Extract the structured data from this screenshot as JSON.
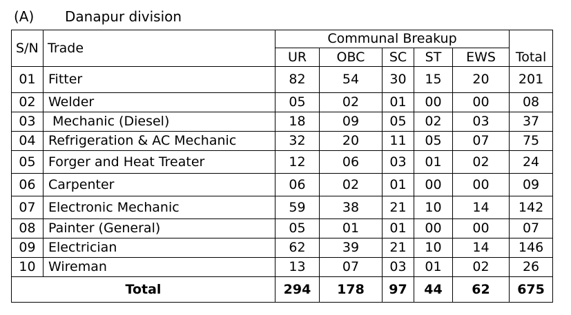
{
  "section": {
    "label": "(A)",
    "title": "Danapur division"
  },
  "table": {
    "header": {
      "sn": "S/N",
      "trade": "Trade",
      "group": "Communal Breakup",
      "cols": [
        "UR",
        "OBC",
        "SC",
        "ST",
        "EWS"
      ],
      "total": "Total"
    },
    "rows": [
      {
        "sn": "01",
        "trade": "Fitter",
        "ur": "82",
        "obc": "54",
        "sc": "30",
        "st": "15",
        "ews": "20",
        "total": "201"
      },
      {
        "sn": "02",
        "trade": "Welder",
        "ur": "05",
        "obc": "02",
        "sc": "01",
        "st": "00",
        "ews": "00",
        "total": "08"
      },
      {
        "sn": "03",
        "trade": " Mechanic (Diesel)",
        "ur": "18",
        "obc": "09",
        "sc": "05",
        "st": "02",
        "ews": "03",
        "total": "37"
      },
      {
        "sn": "04",
        "trade": "Refrigeration & AC Mechanic",
        "ur": "32",
        "obc": "20",
        "sc": "11",
        "st": "05",
        "ews": "07",
        "total": "75"
      },
      {
        "sn": "05",
        "trade": "Forger and Heat Treater",
        "ur": "12",
        "obc": "06",
        "sc": "03",
        "st": "01",
        "ews": "02",
        "total": "24"
      },
      {
        "sn": "06",
        "trade": "Carpenter",
        "ur": "06",
        "obc": "02",
        "sc": "01",
        "st": "00",
        "ews": "00",
        "total": "09"
      },
      {
        "sn": "07",
        "trade": "Electronic Mechanic",
        "ur": "59",
        "obc": "38",
        "sc": "21",
        "st": "10",
        "ews": "14",
        "total": "142"
      },
      {
        "sn": "08",
        "trade": "Painter (General)",
        "ur": "05",
        "obc": "01",
        "sc": "01",
        "st": "00",
        "ews": "00",
        "total": "07"
      },
      {
        "sn": "09",
        "trade": "Electrician",
        "ur": "62",
        "obc": "39",
        "sc": "21",
        "st": "10",
        "ews": "14",
        "total": "146"
      },
      {
        "sn": "10",
        "trade": "Wireman",
        "ur": "13",
        "obc": "07",
        "sc": "03",
        "st": "01",
        "ews": "02",
        "total": "26"
      }
    ],
    "totals": {
      "label": "Total",
      "ur": "294",
      "obc": "178",
      "sc": "97",
      "st": "44",
      "ews": "62",
      "total": "675"
    }
  }
}
